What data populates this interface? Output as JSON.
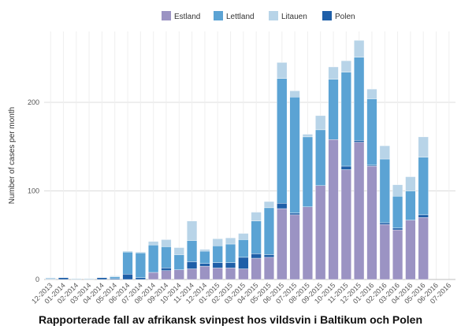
{
  "chart_data": {
    "type": "bar",
    "stacked": true,
    "caption": "Rapporterade fall av afrikansk svinpest hos vildsvin i Baltikum och Polen",
    "ylabel": "Number of cases per month",
    "xlabel": "",
    "ylim": [
      0,
      280
    ],
    "yticks": [
      0,
      100,
      200
    ],
    "grid": true,
    "legend_position": "top",
    "categories": [
      "12-2013",
      "01-2014",
      "02-2014",
      "03-2014",
      "04-2014",
      "05-2014",
      "06-2014",
      "07-2014",
      "08-2014",
      "09-2014",
      "10-2014",
      "11-2014",
      "12-2014",
      "01-2015",
      "02-2015",
      "03-2015",
      "04-2015",
      "05-2015",
      "06-2015",
      "07-2015",
      "08-2015",
      "09-2015",
      "10-2015",
      "11-2015",
      "12-2015",
      "01-2016",
      "02-2016",
      "03-2016",
      "04-2016",
      "05-2016",
      "06-2016",
      "07-2016"
    ],
    "series": [
      {
        "name": "Estland",
        "color": "#9b93c3",
        "values": [
          0,
          0,
          0,
          0,
          0,
          0,
          0,
          0,
          8,
          10,
          11,
          12,
          15,
          13,
          13,
          12,
          24,
          25,
          80,
          73,
          82,
          106,
          158,
          124,
          155,
          128,
          62,
          56,
          67,
          70,
          0,
          0
        ]
      },
      {
        "name": "Polen",
        "color": "#1f5fa8",
        "values": [
          0,
          2,
          0,
          0,
          2,
          1,
          6,
          2,
          0,
          3,
          0,
          8,
          3,
          6,
          6,
          13,
          5,
          3,
          6,
          2,
          0,
          0,
          0,
          4,
          2,
          1,
          2,
          2,
          0,
          3,
          0,
          0
        ]
      },
      {
        "name": "Lettland",
        "color": "#5ba3d4",
        "values": [
          0,
          0,
          0,
          0,
          0,
          2,
          25,
          28,
          31,
          24,
          17,
          24,
          14,
          19,
          21,
          20,
          37,
          53,
          141,
          131,
          79,
          63,
          68,
          106,
          94,
          75,
          72,
          36,
          33,
          65,
          0,
          0
        ]
      },
      {
        "name": "Litauen",
        "color": "#b8d4e8",
        "values": [
          2,
          0,
          1,
          1,
          0,
          1,
          1,
          1,
          4,
          8,
          8,
          22,
          2,
          8,
          7,
          7,
          10,
          7,
          18,
          7,
          3,
          16,
          14,
          13,
          19,
          11,
          15,
          13,
          16,
          23,
          0,
          0
        ]
      }
    ],
    "legend_order": [
      "Estland",
      "Lettland",
      "Litauen",
      "Polen"
    ]
  }
}
